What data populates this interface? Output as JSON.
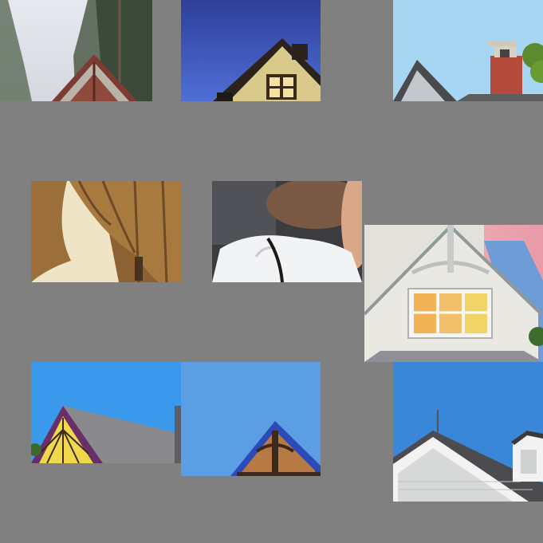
{
  "collage": {
    "background": "#808080",
    "tiles": [
      {
        "id": "t1",
        "subject": "red-gable-roof-with-pine-trees"
      },
      {
        "id": "t2",
        "subject": "yellow-gable-house-at-dusk"
      },
      {
        "id": "t3",
        "subject": "roof-with-brick-chimney"
      },
      {
        "id": "t4",
        "subject": "golden-curtain-tied-back"
      },
      {
        "id": "t5",
        "subject": "person-in-white-blouse"
      },
      {
        "id": "t6",
        "subject": "white-house-gable-with-lit-window"
      },
      {
        "id": "t7",
        "subject": "victorian-gable-sunburst"
      },
      {
        "id": "t8",
        "subject": "blue-trim-gable-peak"
      },
      {
        "id": "t9",
        "subject": "white-shingle-gable"
      }
    ]
  }
}
